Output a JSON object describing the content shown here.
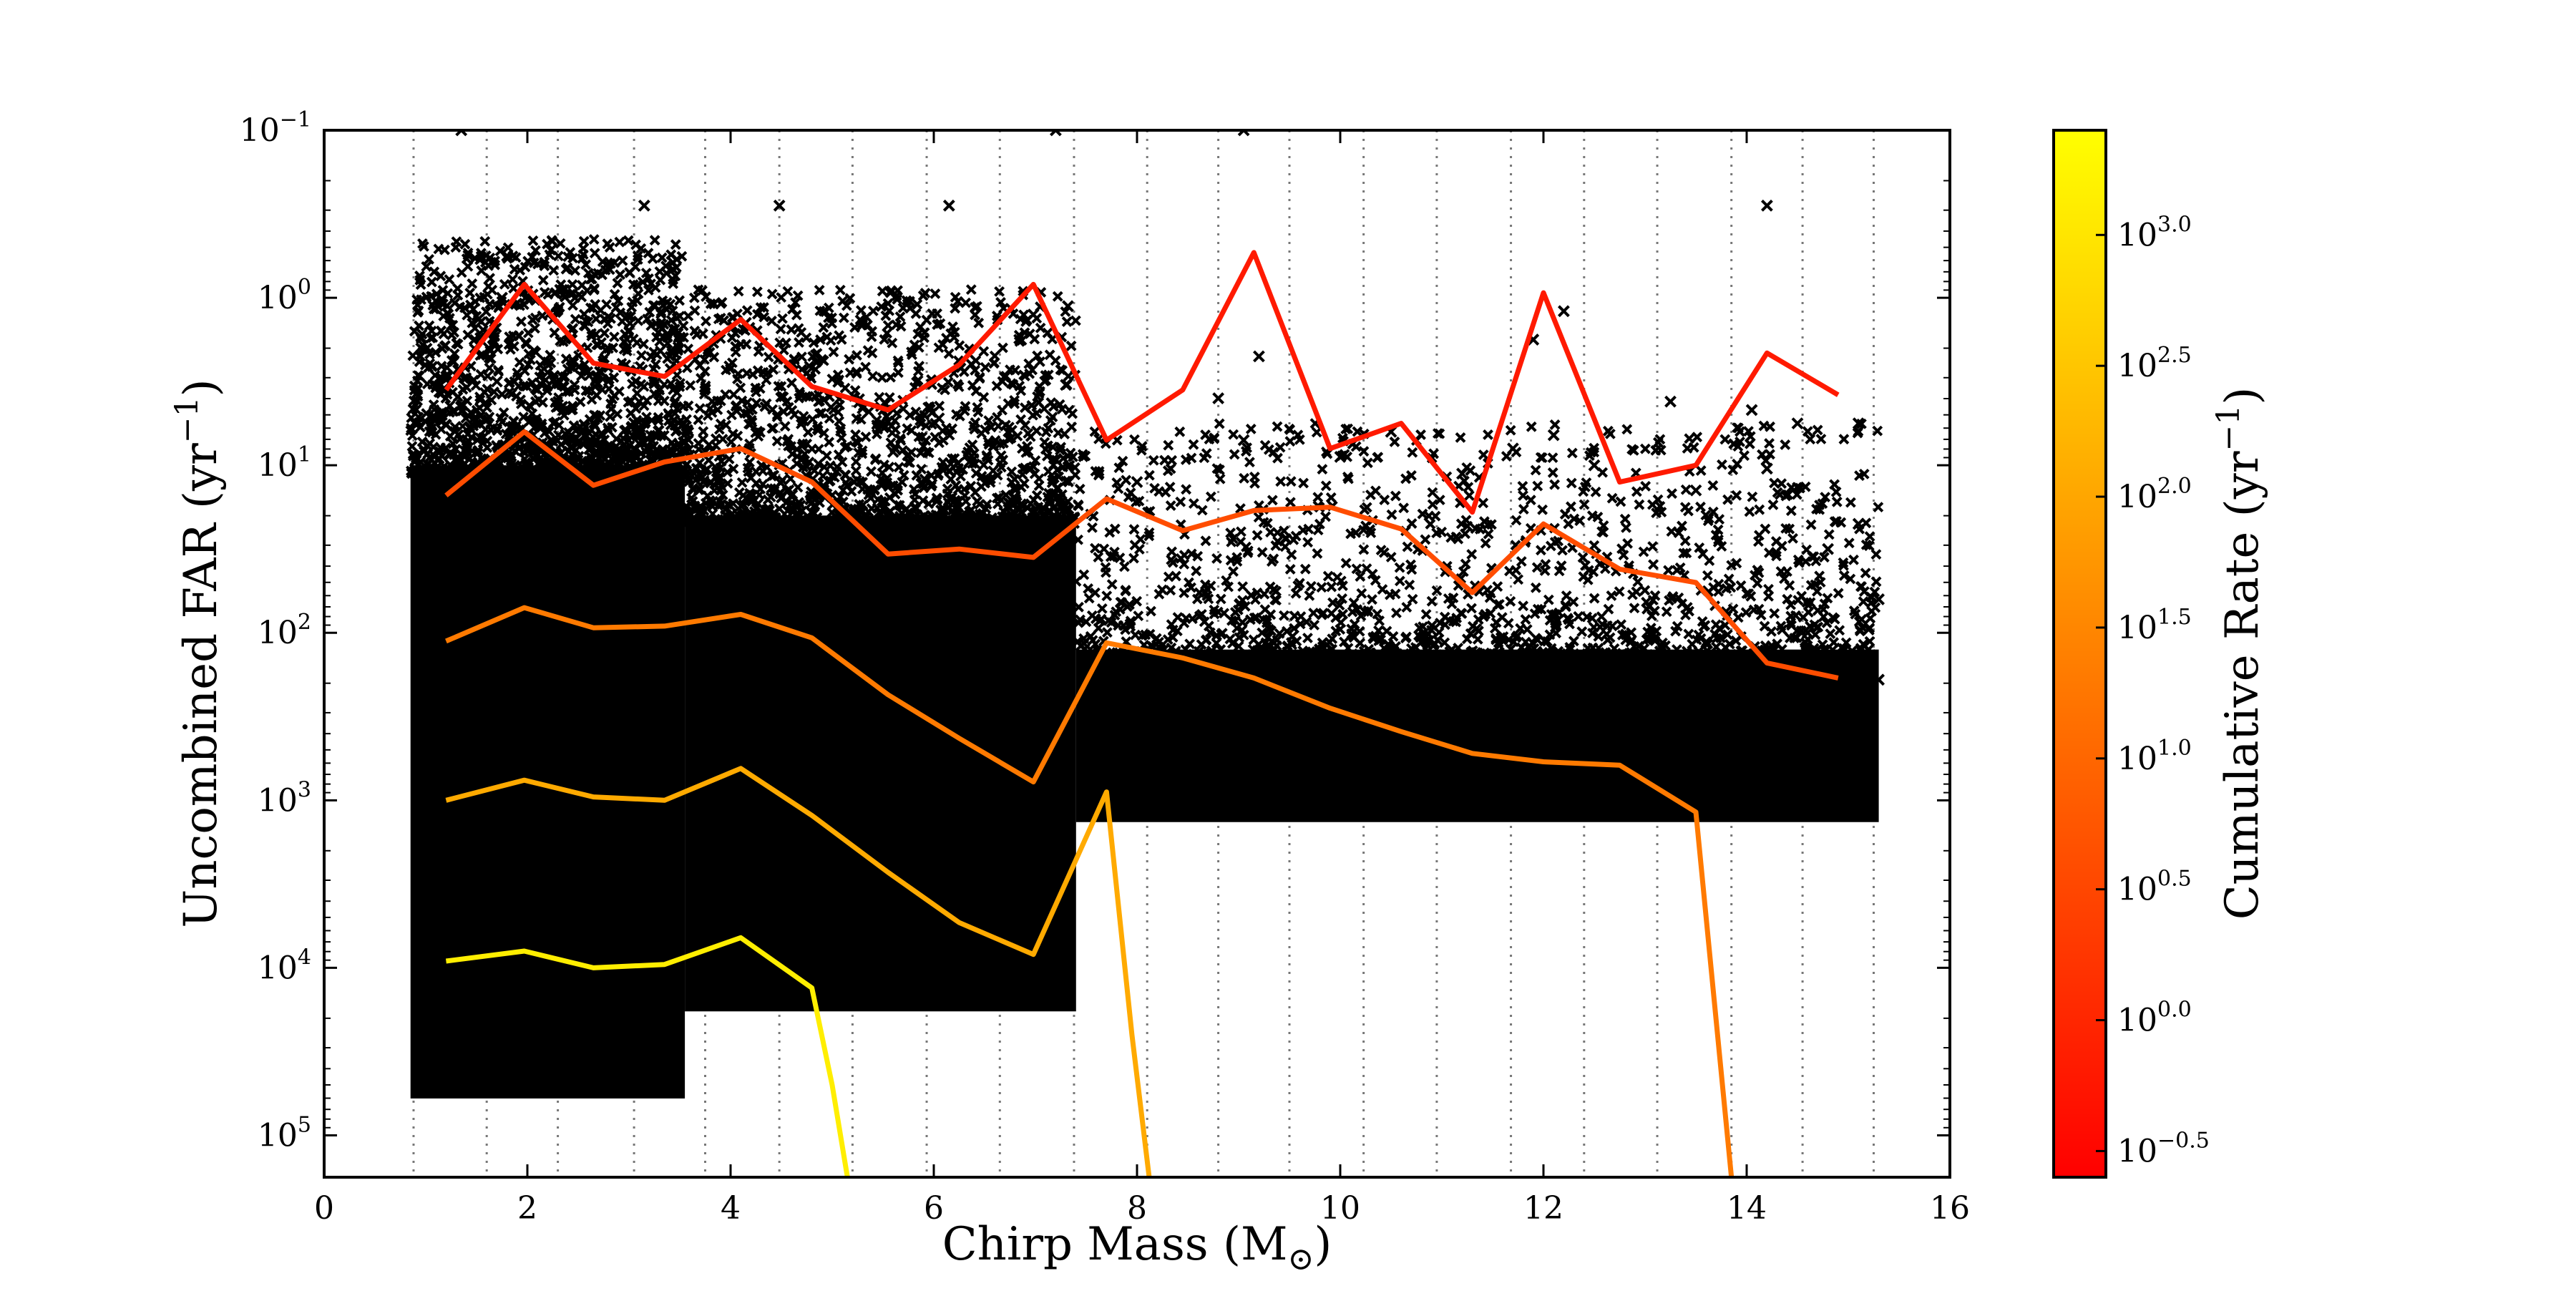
{
  "chart_data": {
    "type": "scatter",
    "xlabel": "Chirp Mass (M",
    "xlabel_sub": "⊙",
    "xlabel_close": ")",
    "ylabel": "Uncombined FAR (yr",
    "ylabel_sup": "−1",
    "ylabel_close": ")",
    "xlim": [
      0,
      16
    ],
    "ylim_exp": [
      -1,
      5.25
    ],
    "y_inverted": true,
    "y_scale": "log",
    "x_ticks": [
      0,
      2,
      4,
      6,
      8,
      10,
      12,
      14,
      16
    ],
    "y_ticks": [
      {
        "exp": -1,
        "label": "10",
        "sup": "−1"
      },
      {
        "exp": 0,
        "label": "10",
        "sup": "0"
      },
      {
        "exp": 1,
        "label": "10",
        "sup": "1"
      },
      {
        "exp": 2,
        "label": "10",
        "sup": "2"
      },
      {
        "exp": 3,
        "label": "10",
        "sup": "3"
      },
      {
        "exp": 4,
        "label": "10",
        "sup": "4"
      },
      {
        "exp": 5,
        "label": "10",
        "sup": "5"
      }
    ],
    "bin_edges": [
      0.88,
      1.6,
      2.3,
      3.05,
      3.75,
      4.48,
      5.2,
      5.93,
      6.65,
      7.38,
      8.1,
      8.8,
      9.5,
      10.23,
      10.95,
      11.68,
      12.4,
      13.12,
      13.85,
      14.55,
      15.25
    ],
    "grid": "vertical dotted at bin edges",
    "dense_regions": [
      {
        "x": [
          0.85,
          3.55
        ],
        "y_exp": [
          1.0,
          4.78
        ]
      },
      {
        "x": [
          3.55,
          7.4
        ],
        "y_exp": [
          1.3,
          4.26
        ]
      },
      {
        "x": [
          7.4,
          15.3
        ],
        "y_exp": [
          2.1,
          3.13
        ]
      }
    ],
    "outliers": [
      {
        "x": 1.35,
        "y_exp": -1.0
      },
      {
        "x": 7.2,
        "y_exp": -1.0
      },
      {
        "x": 9.05,
        "y_exp": -1.0
      },
      {
        "x": 3.15,
        "y_exp": -0.55
      },
      {
        "x": 4.48,
        "y_exp": -0.55
      },
      {
        "x": 6.15,
        "y_exp": -0.55
      },
      {
        "x": 14.2,
        "y_exp": -0.55
      },
      {
        "x": 1.8,
        "y_exp": -0.25
      },
      {
        "x": 1.75,
        "y_exp": 0.0
      },
      {
        "x": 6.98,
        "y_exp": 0.1
      },
      {
        "x": 7.32,
        "y_exp": 0.05
      },
      {
        "x": 12.2,
        "y_exp": 0.08
      },
      {
        "x": 4.15,
        "y_exp": 0.15
      },
      {
        "x": 11.9,
        "y_exp": 0.25
      },
      {
        "x": 9.2,
        "y_exp": 0.35
      },
      {
        "x": 1.62,
        "y_exp": 0.3
      },
      {
        "x": 1.7,
        "y_exp": 0.5
      },
      {
        "x": 2.45,
        "y_exp": 0.42
      },
      {
        "x": 2.1,
        "y_exp": 0.55
      },
      {
        "x": 4.75,
        "y_exp": 0.45
      },
      {
        "x": 3.1,
        "y_exp": 0.62
      },
      {
        "x": 5.3,
        "y_exp": 0.66
      },
      {
        "x": 6.05,
        "y_exp": 0.72
      },
      {
        "x": 7.3,
        "y_exp": 0.52
      },
      {
        "x": 8.8,
        "y_exp": 0.6
      },
      {
        "x": 13.25,
        "y_exp": 0.62
      },
      {
        "x": 14.05,
        "y_exp": 0.67
      },
      {
        "x": 14.5,
        "y_exp": 0.75
      },
      {
        "x": 15.1,
        "y_exp": 0.75
      },
      {
        "x": 9.05,
        "y_exp": 0.85
      },
      {
        "x": 10.5,
        "y_exp": 0.8
      },
      {
        "x": 10.0,
        "y_exp": 0.95
      },
      {
        "x": 12.1,
        "y_exp": 0.82
      },
      {
        "x": 3.55,
        "y_exp": 0.86
      },
      {
        "x": 5.6,
        "y_exp": 0.92
      },
      {
        "x": 6.35,
        "y_exp": 0.98
      },
      {
        "x": 11.7,
        "y_exp": 0.9
      },
      {
        "x": 12.5,
        "y_exp": 1.0
      },
      {
        "x": 14.2,
        "y_exp": 1.02
      },
      {
        "x": 1.2,
        "y_exp": 0.76
      },
      {
        "x": 1.05,
        "y_exp": 1.05
      },
      {
        "x": 2.5,
        "y_exp": 0.95
      },
      {
        "x": 15.2,
        "y_exp": 1.98
      },
      {
        "x": 15.3,
        "y_exp": 1.8
      },
      {
        "x": 15.3,
        "y_exp": 2.28
      },
      {
        "x": 15.1,
        "y_exp": 1.35
      },
      {
        "x": 14.8,
        "y_exp": 1.5
      },
      {
        "x": 14.6,
        "y_exp": 2.0
      },
      {
        "x": 14.8,
        "y_exp": 2.5
      },
      {
        "x": 14.95,
        "y_exp": 2.85
      },
      {
        "x": 15.05,
        "y_exp": 3.05
      },
      {
        "x": 14.7,
        "y_exp": 3.05
      },
      {
        "x": 13.5,
        "y_exp": 1.15
      },
      {
        "x": 11.2,
        "y_exp": 1.05
      },
      {
        "x": 8.0,
        "y_exp": 1.1
      }
    ],
    "series": [
      {
        "color": "#ff1a00",
        "points": [
          [
            1.2,
            0.55
          ],
          [
            1.97,
            -0.08
          ],
          [
            2.65,
            0.39
          ],
          [
            3.35,
            0.47
          ],
          [
            4.1,
            0.13
          ],
          [
            4.8,
            0.53
          ],
          [
            5.55,
            0.67
          ],
          [
            6.25,
            0.4
          ],
          [
            6.98,
            -0.08
          ],
          [
            7.7,
            0.85
          ],
          [
            8.45,
            0.55
          ],
          [
            9.15,
            -0.27
          ],
          [
            9.9,
            0.9
          ],
          [
            10.6,
            0.75
          ],
          [
            11.3,
            1.28
          ],
          [
            12.0,
            -0.03
          ],
          [
            12.75,
            1.1
          ],
          [
            13.5,
            1.0
          ],
          [
            14.2,
            0.33
          ],
          [
            14.9,
            0.58
          ]
        ]
      },
      {
        "color": "#ff4d00",
        "points": [
          [
            1.2,
            1.18
          ],
          [
            1.97,
            0.8
          ],
          [
            2.65,
            1.12
          ],
          [
            3.35,
            0.98
          ],
          [
            4.1,
            0.9
          ],
          [
            4.8,
            1.1
          ],
          [
            5.55,
            1.53
          ],
          [
            6.25,
            1.5
          ],
          [
            6.98,
            1.55
          ],
          [
            7.7,
            1.2
          ],
          [
            8.45,
            1.39
          ],
          [
            9.15,
            1.27
          ],
          [
            9.9,
            1.25
          ],
          [
            10.6,
            1.38
          ],
          [
            11.3,
            1.76
          ],
          [
            12.0,
            1.35
          ],
          [
            12.75,
            1.62
          ],
          [
            13.5,
            1.7
          ],
          [
            14.2,
            2.18
          ],
          [
            14.9,
            2.27
          ]
        ]
      },
      {
        "color": "#ff7a00",
        "points": [
          [
            1.2,
            2.05
          ],
          [
            1.97,
            1.85
          ],
          [
            2.65,
            1.97
          ],
          [
            3.35,
            1.96
          ],
          [
            4.1,
            1.89
          ],
          [
            4.8,
            2.03
          ],
          [
            5.55,
            2.37
          ],
          [
            6.25,
            2.63
          ],
          [
            6.98,
            2.89
          ],
          [
            7.7,
            2.06
          ],
          [
            8.45,
            2.15
          ],
          [
            9.15,
            2.27
          ],
          [
            9.9,
            2.45
          ],
          [
            10.6,
            2.59
          ],
          [
            11.3,
            2.72
          ],
          [
            12.0,
            2.77
          ],
          [
            12.75,
            2.79
          ],
          [
            13.5,
            3.07
          ],
          [
            13.85,
            5.25
          ]
        ]
      },
      {
        "color": "#ffaa00",
        "points": [
          [
            1.2,
            3.0
          ],
          [
            1.97,
            2.88
          ],
          [
            2.65,
            2.98
          ],
          [
            3.35,
            3.0
          ],
          [
            4.1,
            2.81
          ],
          [
            4.8,
            3.09
          ],
          [
            5.55,
            3.43
          ],
          [
            6.25,
            3.73
          ],
          [
            6.98,
            3.92
          ],
          [
            7.7,
            2.95
          ],
          [
            7.95,
            4.4
          ],
          [
            8.12,
            5.25
          ]
        ]
      },
      {
        "color": "#ffee00",
        "points": [
          [
            1.2,
            3.96
          ],
          [
            1.97,
            3.9
          ],
          [
            2.65,
            4.0
          ],
          [
            3.35,
            3.98
          ],
          [
            4.1,
            3.82
          ],
          [
            4.8,
            4.12
          ],
          [
            5.0,
            4.7
          ],
          [
            5.15,
            5.25
          ]
        ]
      }
    ],
    "colorbar": {
      "label": "Cumulative Rate (yr",
      "label_sup": "−1",
      "label_close": ")",
      "scale": "log",
      "range_exp": [
        -0.6,
        3.4
      ],
      "colors": [
        "#ff0000",
        "#ff8000",
        "#ffff00"
      ],
      "ticks": [
        {
          "exp": -0.5,
          "label": "10",
          "sup": "−0.5"
        },
        {
          "exp": 0.0,
          "label": "10",
          "sup": "0.0"
        },
        {
          "exp": 0.5,
          "label": "10",
          "sup": "0.5"
        },
        {
          "exp": 1.0,
          "label": "10",
          "sup": "1.0"
        },
        {
          "exp": 1.5,
          "label": "10",
          "sup": "1.5"
        },
        {
          "exp": 2.0,
          "label": "10",
          "sup": "2.0"
        },
        {
          "exp": 2.5,
          "label": "10",
          "sup": "2.5"
        },
        {
          "exp": 3.0,
          "label": "10",
          "sup": "3.0"
        }
      ]
    }
  }
}
